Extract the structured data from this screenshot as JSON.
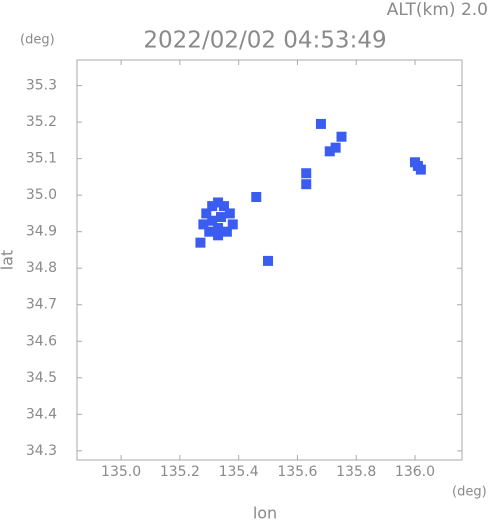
{
  "chart_data": {
    "type": "scatter",
    "title": "2022/02/02 04:53:49",
    "subtitle": "ALT(km) 2.0",
    "y_unit": "(deg)",
    "x_unit": "(deg)",
    "xlabel": "lon",
    "ylabel": "lat",
    "color": "#3a5cf0",
    "x": [
      135.29,
      135.31,
      135.33,
      135.35,
      135.37,
      135.38,
      135.36,
      135.33,
      135.3,
      135.28,
      135.31,
      135.34,
      135.33,
      135.46,
      135.27,
      135.5,
      135.63,
      135.63,
      135.68,
      135.71,
      135.73,
      135.75,
      136.01,
      136.0,
      136.02
    ],
    "y": [
      34.95,
      34.97,
      34.98,
      34.97,
      34.95,
      34.92,
      34.9,
      34.89,
      34.9,
      34.92,
      34.93,
      34.94,
      34.91,
      34.995,
      34.87,
      34.82,
      35.06,
      35.03,
      35.195,
      35.12,
      35.13,
      35.16,
      35.08,
      35.09,
      35.07
    ],
    "xlim": [
      134.85,
      136.16
    ],
    "ylim": [
      34.275,
      35.37
    ],
    "xticks": [
      {
        "value": 135,
        "label": "135.0"
      },
      135.2,
      135.4,
      135.6,
      135.8,
      {
        "value": 136,
        "label": "136.0"
      }
    ],
    "yticks": [
      {
        "value": 34.3,
        "label": "34.3"
      },
      34.4,
      34.5,
      34.6,
      34.7,
      34.8,
      34.9,
      {
        "value": 35,
        "label": "35.0"
      },
      35.1,
      35.2,
      35.3
    ],
    "grid": false
  }
}
